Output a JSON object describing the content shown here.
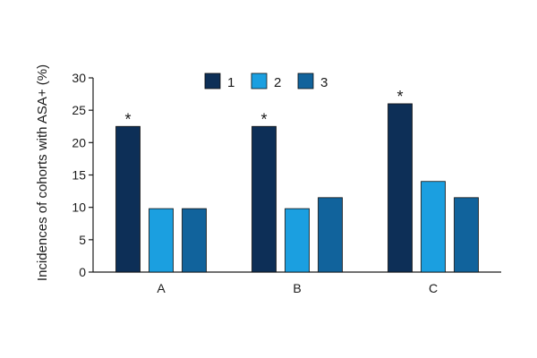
{
  "chart_data": {
    "type": "bar",
    "categories": [
      "A",
      "B",
      "C"
    ],
    "series": [
      {
        "name": "1",
        "color": "#0d2f57",
        "values": [
          22.5,
          22.5,
          26
        ]
      },
      {
        "name": "2",
        "color": "#1b9fe0",
        "values": [
          9.8,
          9.8,
          14
        ]
      },
      {
        "name": "3",
        "color": "#11639c",
        "values": [
          9.8,
          11.5,
          11.5
        ]
      }
    ],
    "significance_marker": "*",
    "significant": [
      [
        true,
        false,
        false
      ],
      [
        true,
        false,
        false
      ],
      [
        true,
        false,
        false
      ]
    ],
    "ylabel": "Incidences of cohorts with ASA+ (%)",
    "ylim": [
      0,
      30
    ],
    "yticks": [
      0,
      5,
      10,
      15,
      20,
      25,
      30
    ],
    "legend_position": "top-center",
    "grid": false
  }
}
